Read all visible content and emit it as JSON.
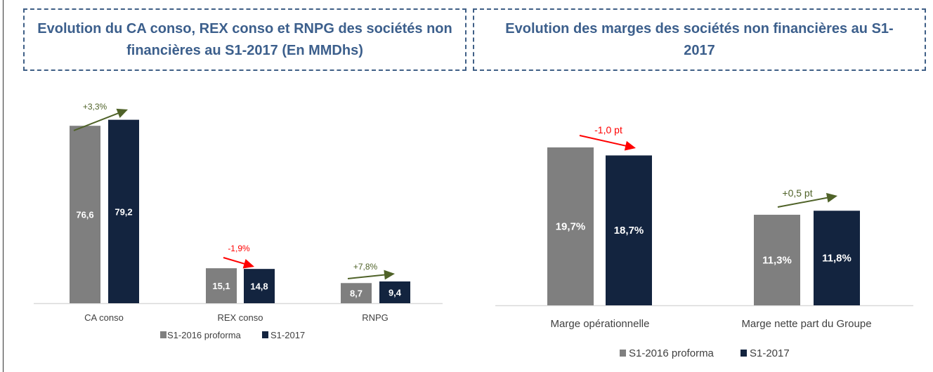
{
  "chart_data": [
    {
      "type": "bar",
      "title": "Evolution du CA conso, REX conso et RNPG des sociétés non financières au S1-2017 (En MMDhs)",
      "categories": [
        "CA conso",
        "REX conso",
        "RNPG"
      ],
      "series": [
        {
          "name": "S1-2016 proforma",
          "values": [
            76.6,
            15.1,
            8.7
          ],
          "labels": [
            "76,6",
            "15,1",
            "8,7"
          ],
          "color": "#7f7f7f"
        },
        {
          "name": "S1-2017",
          "values": [
            79.2,
            14.8,
            9.4
          ],
          "labels": [
            "79,2",
            "14,8",
            "9,4"
          ],
          "color": "#13243f"
        }
      ],
      "annotations": [
        {
          "text": "+3,3%",
          "direction": "up",
          "color": "#4f6228"
        },
        {
          "text": "-1,9%",
          "direction": "down",
          "color": "#ff0000"
        },
        {
          "text": "+7,8%",
          "direction": "up",
          "color": "#4f6228"
        }
      ],
      "legend": "bottom",
      "grid": false
    },
    {
      "type": "bar",
      "title": "Evolution des marges des sociétés non financières au S1-2017",
      "categories": [
        "Marge opérationnelle",
        "Marge nette part du Groupe"
      ],
      "series": [
        {
          "name": "S1-2016 proforma",
          "values": [
            19.7,
            11.3
          ],
          "labels": [
            "19,7%",
            "11,3%"
          ],
          "color": "#7f7f7f"
        },
        {
          "name": "S1-2017",
          "values": [
            18.7,
            11.8
          ],
          "labels": [
            "18,7%",
            "11,8%"
          ],
          "color": "#13243f"
        }
      ],
      "annotations": [
        {
          "text": "-1,0 pt",
          "direction": "down",
          "color": "#ff0000"
        },
        {
          "text": "+0,5 pt",
          "direction": "up",
          "color": "#4f6228"
        }
      ],
      "legend": "bottom",
      "grid": false
    }
  ]
}
